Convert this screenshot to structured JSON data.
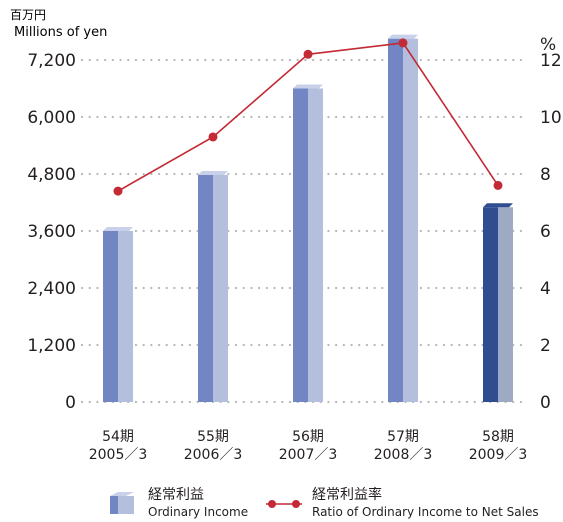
{
  "chart_data": {
    "type": "bar",
    "left_unit": {
      "jp": "百万円",
      "en": "Millions of yen"
    },
    "right_unit": "%",
    "categories": [
      {
        "period": "54期",
        "year": "2005／3"
      },
      {
        "period": "55期",
        "year": "2006／3"
      },
      {
        "period": "56期",
        "year": "2007／3"
      },
      {
        "period": "57期",
        "year": "2008／3"
      },
      {
        "period": "58期",
        "year": "2009／3"
      }
    ],
    "y_left": {
      "min": 0,
      "max": 7200,
      "ticks": [
        "0",
        "1,200",
        "2,400",
        "3,600",
        "4,800",
        "6,000",
        "7,200"
      ]
    },
    "y_right": {
      "min": 0,
      "max": 12,
      "ticks": [
        "0",
        "2",
        "4",
        "6",
        "8",
        "10",
        "12"
      ]
    },
    "grid": true,
    "legend_position": "bottom",
    "series": [
      {
        "name": {
          "jp": "経常利益",
          "en": "Ordinary Income"
        },
        "kind": "bar",
        "axis": "left",
        "values": [
          3600,
          4780,
          6600,
          7650,
          4100
        ],
        "highlight_index": 4
      },
      {
        "name": {
          "jp": "経常利益率",
          "en": "Ratio of Ordinary Income to Net Sales"
        },
        "kind": "line",
        "axis": "right",
        "values": [
          7.4,
          9.3,
          12.2,
          12.6,
          7.6
        ]
      }
    ],
    "colors": {
      "bar_light": "#b3bfdd",
      "bar_dark_side": "#7286c3",
      "bar_top": "#c8d1e9",
      "bar_highlight_front": "#9ea9c4",
      "bar_highlight_side": "#2f4d8f",
      "line": "#c32a35",
      "grid": "#b8b8b8",
      "text": "#231f20"
    }
  }
}
